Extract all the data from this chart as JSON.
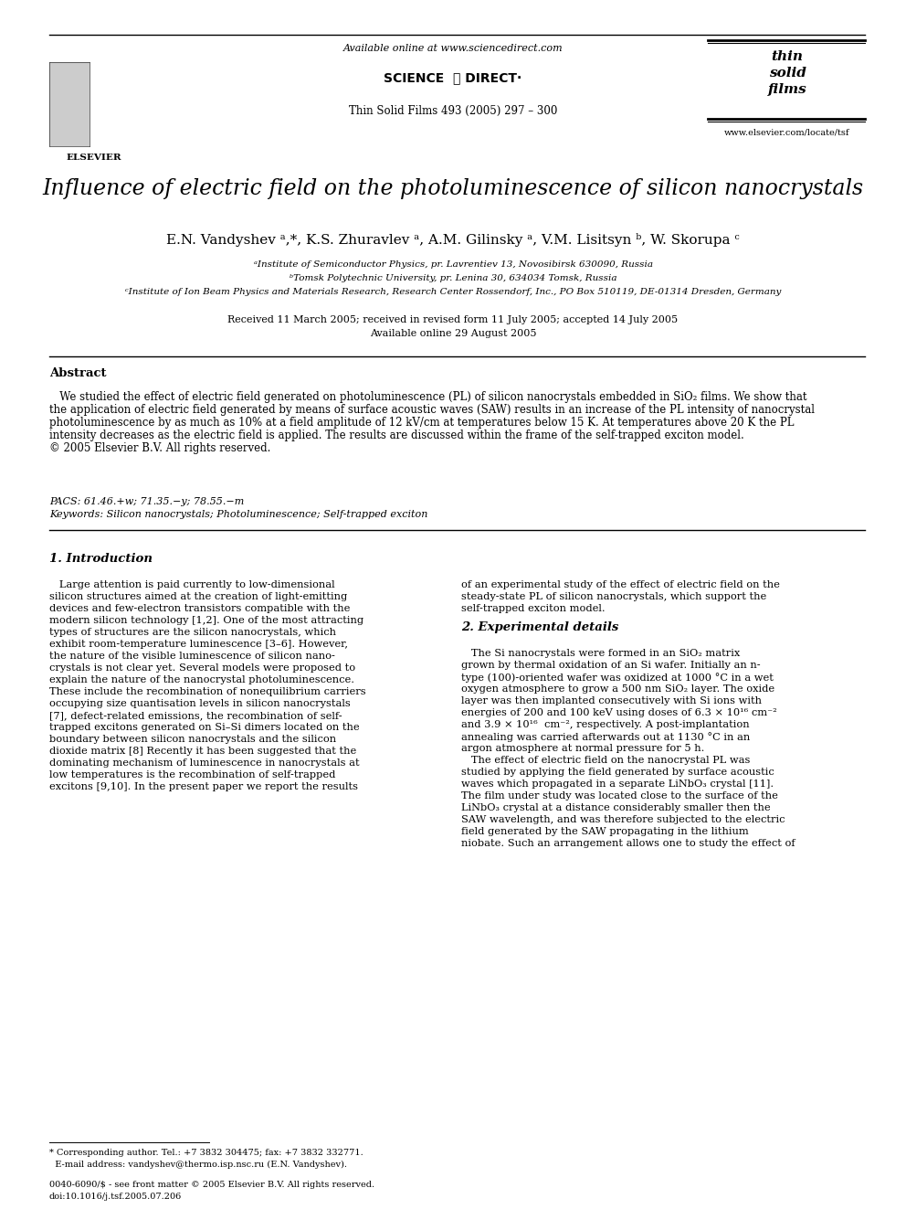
{
  "bg_color": "#ffffff",
  "page_width": 9.92,
  "page_height": 13.23,
  "dpi": 100,
  "header": {
    "available_online": "Available online at www.sciencedirect.com",
    "sciencedirect_text": "SCIENCE  ⓓ DIRECT·",
    "journal": "Thin Solid Films 493 (2005) 297 – 300",
    "elsevier_text": "ELSEVIER",
    "tsf_line1": "thin",
    "tsf_line2": "solid",
    "tsf_line3": "films",
    "website": "www.elsevier.com/locate/tsf"
  },
  "title": "Influence of electric field on the photoluminescence of silicon nanocrystals",
  "authors": "E.N. Vandyshev ᵃ,*, K.S. Zhuravlev ᵃ, A.M. Gilinsky ᵃ, V.M. Lisitsyn ᵇ, W. Skorupa ᶜ",
  "affil1": "ᵃInstitute of Semiconductor Physics, pr. Lavrentiev 13, Novosibirsk 630090, Russia",
  "affil2": "ᵇTomsk Polytechnic University, pr. Lenina 30, 634034 Tomsk, Russia",
  "affil3": "ᶜInstitute of Ion Beam Physics and Materials Research, Research Center Rossendorf, Inc., PO Box 510119, DE-01314 Dresden, Germany",
  "received": "Received 11 March 2005; received in revised form 11 July 2005; accepted 14 July 2005",
  "available": "Available online 29 August 2005",
  "abstract_title": "Abstract",
  "abstract_text": "   We studied the effect of electric field generated on photoluminescence (PL) of silicon nanocrystals embedded in SiO₂ films. We show that\nthe application of electric field generated by means of surface acoustic waves (SAW) results in an increase of the PL intensity of nanocrystal\nphotoluminescence by as much as 10% at a field amplitude of 12 kV/cm at temperatures below 15 K. At temperatures above 20 K the PL\nintensity decreases as the electric field is applied. The results are discussed within the frame of the self-trapped exciton model.\n© 2005 Elsevier B.V. All rights reserved.",
  "pacs": "PACS: 61.46.+w; 71.35.−y; 78.55.−m",
  "keywords": "Keywords: Silicon nanocrystals; Photoluminescence; Self-trapped exciton",
  "section1_title": "1. Introduction",
  "s1c1_lines": [
    "   Large attention is paid currently to low-dimensional",
    "silicon structures aimed at the creation of light-emitting",
    "devices and few-electron transistors compatible with the",
    "modern silicon technology [1,2]. One of the most attracting",
    "types of structures are the silicon nanocrystals, which",
    "exhibit room-temperature luminescence [3–6]. However,",
    "the nature of the visible luminescence of silicon nano-",
    "crystals is not clear yet. Several models were proposed to",
    "explain the nature of the nanocrystal photoluminescence.",
    "These include the recombination of nonequilibrium carriers",
    "occupying size quantisation levels in silicon nanocrystals",
    "[7], defect-related emissions, the recombination of self-",
    "trapped excitons generated on Si–Si dimers located on the",
    "boundary between silicon nanocrystals and the silicon",
    "dioxide matrix [8] Recently it has been suggested that the",
    "dominating mechanism of luminescence in nanocrystals at",
    "low temperatures is the recombination of self-trapped",
    "excitons [9,10]. In the present paper we report the results"
  ],
  "s1c2_lines": [
    "of an experimental study of the effect of electric field on the",
    "steady-state PL of silicon nanocrystals, which support the",
    "self-trapped exciton model."
  ],
  "section2_title": "2. Experimental details",
  "s2c2_lines": [
    "   The Si nanocrystals were formed in an SiO₂ matrix",
    "grown by thermal oxidation of an Si wafer. Initially an n-",
    "type (100)-oriented wafer was oxidized at 1000 °C in a wet",
    "oxygen atmosphere to grow a 500 nm SiO₂ layer. The oxide",
    "layer was then implanted consecutively with Si ions with",
    "energies of 200 and 100 keV using doses of 6.3 × 10¹⁶ cm⁻²",
    "and 3.9 × 10¹⁶  cm⁻², respectively. A post-implantation",
    "annealing was carried afterwards out at 1130 °C in an",
    "argon atmosphere at normal pressure for 5 h.",
    "   The effect of electric field on the nanocrystal PL was",
    "studied by applying the field generated by surface acoustic",
    "waves which propagated in a separate LiNbO₃ crystal [11].",
    "The film under study was located close to the surface of the",
    "LiNbO₃ crystal at a distance considerably smaller then the",
    "SAW wavelength, and was therefore subjected to the electric",
    "field generated by the SAW propagating in the lithium",
    "niobate. Such an arrangement allows one to study the effect of"
  ],
  "footnote_star": "* Corresponding author. Tel.: +7 3832 304475; fax: +7 3832 332771.",
  "footnote_email": "  E-mail address: vandyshev@thermo.isp.nsc.ru (E.N. Vandyshev).",
  "footnote_copy1": "0040-6090/$ - see front matter © 2005 Elsevier B.V. All rights reserved.",
  "footnote_copy2": "doi:10.1016/j.tsf.2005.07.206"
}
